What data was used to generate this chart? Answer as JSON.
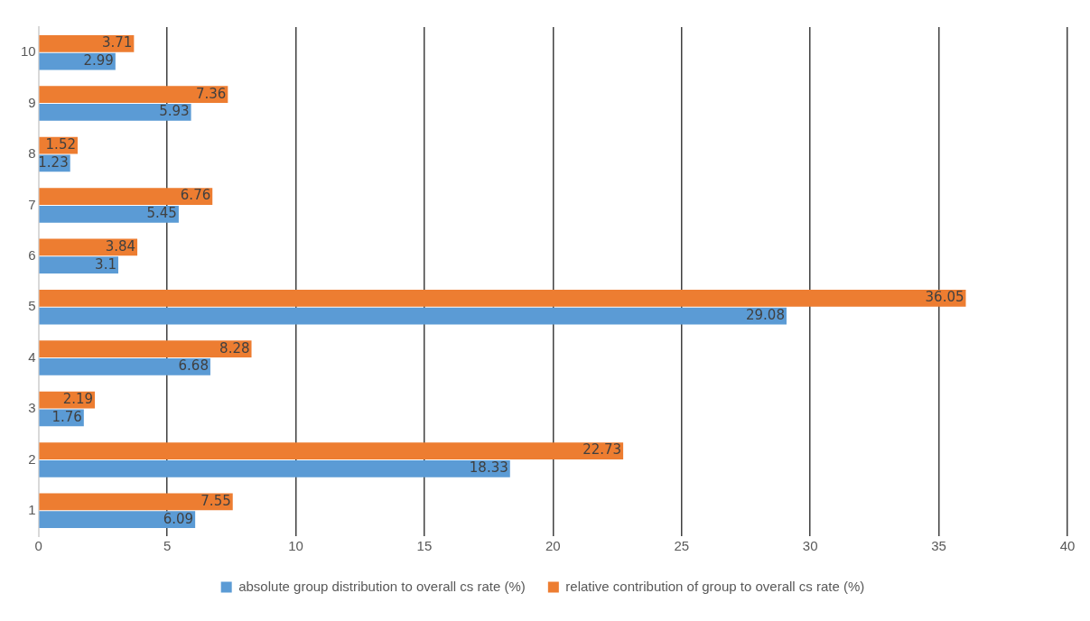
{
  "chart_data": {
    "type": "bar",
    "orientation": "horizontal",
    "categories": [
      "10",
      "9",
      "8",
      "7",
      "6",
      "5",
      "4",
      "3",
      "2",
      "1"
    ],
    "series": [
      {
        "name": "absolute group distribution to overall cs rate (%)",
        "color": "#5b9bd5",
        "values": [
          2.99,
          5.93,
          1.23,
          5.45,
          3.1,
          29.08,
          6.68,
          1.76,
          18.33,
          6.09
        ]
      },
      {
        "name": "relative contribution of group to overall cs rate (%)",
        "color": "#ed7d31",
        "values": [
          3.71,
          7.36,
          1.52,
          6.76,
          3.84,
          36.05,
          8.28,
          2.19,
          22.73,
          7.55
        ]
      }
    ],
    "xlim": [
      0,
      40
    ],
    "xticks": [
      0,
      5,
      10,
      15,
      20,
      25,
      30,
      35,
      40
    ],
    "grid": "x",
    "legend": "bottom",
    "data_labels": true
  }
}
